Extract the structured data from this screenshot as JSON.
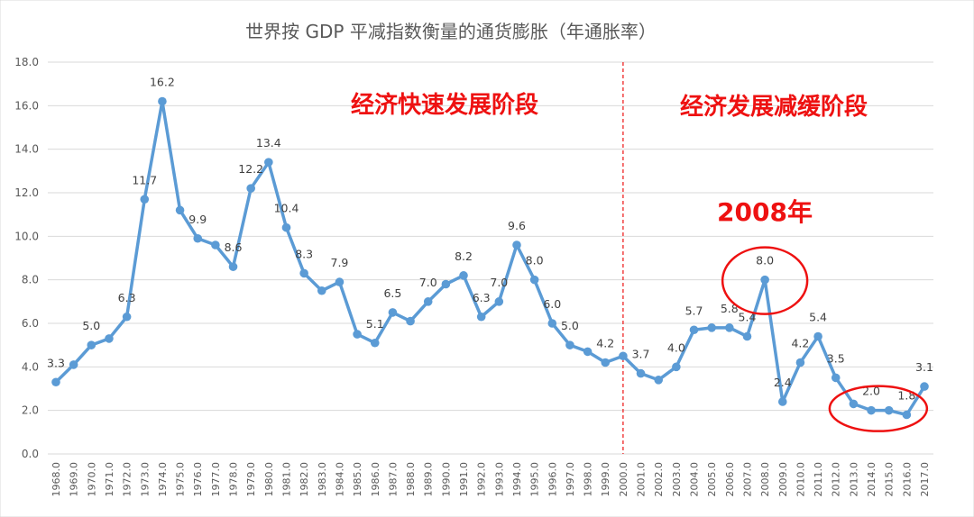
{
  "chart_data": {
    "type": "line",
    "title": "世界按 GDP 平减指数衡量的通货膨胀（年通胀率）",
    "x": [
      "1968.0",
      "1969.0",
      "1970.0",
      "1971.0",
      "1972.0",
      "1973.0",
      "1974.0",
      "1975.0",
      "1976.0",
      "1977.0",
      "1978.0",
      "1979.0",
      "1980.0",
      "1981.0",
      "1982.0",
      "1983.0",
      "1984.0",
      "1985.0",
      "1986.0",
      "1987.0",
      "1988.0",
      "1989.0",
      "1990.0",
      "1991.0",
      "1992.0",
      "1993.0",
      "1994.0",
      "1995.0",
      "1996.0",
      "1997.0",
      "1998.0",
      "1999.0",
      "2000.0",
      "2001.0",
      "2002.0",
      "2003.0",
      "2004.0",
      "2005.0",
      "2006.0",
      "2007.0",
      "2008.0",
      "2009.0",
      "2010.0",
      "2011.0",
      "2012.0",
      "2013.0",
      "2014.0",
      "2015.0",
      "2016.0",
      "2017.0"
    ],
    "values": [
      3.3,
      4.1,
      5.0,
      5.3,
      6.3,
      11.7,
      16.2,
      11.2,
      9.9,
      9.6,
      8.6,
      12.2,
      13.4,
      10.4,
      8.3,
      7.5,
      7.9,
      5.5,
      5.1,
      6.5,
      6.1,
      7.0,
      7.8,
      8.2,
      6.3,
      7.0,
      9.6,
      8.0,
      6.0,
      5.0,
      4.7,
      4.2,
      4.5,
      3.7,
      3.4,
      4.0,
      5.7,
      5.8,
      5.8,
      5.4,
      8.0,
      2.4,
      4.2,
      5.4,
      3.5,
      2.3,
      2.0,
      2.0,
      1.8,
      3.1
    ],
    "data_labels": [
      {
        "x": "1968.0",
        "text": "3.3"
      },
      {
        "x": "1970.0",
        "text": "5.0"
      },
      {
        "x": "1972.0",
        "text": "6.3"
      },
      {
        "x": "1973.0",
        "text": "11.7"
      },
      {
        "x": "1974.0",
        "text": "16.2"
      },
      {
        "x": "1976.0",
        "text": "9.9"
      },
      {
        "x": "1978.0",
        "text": "8.6"
      },
      {
        "x": "1979.0",
        "text": "12.2"
      },
      {
        "x": "1980.0",
        "text": "13.4"
      },
      {
        "x": "1981.0",
        "text": "10.4"
      },
      {
        "x": "1982.0",
        "text": "8.3"
      },
      {
        "x": "1984.0",
        "text": "7.9"
      },
      {
        "x": "1986.0",
        "text": "5.1"
      },
      {
        "x": "1987.0",
        "text": "6.5"
      },
      {
        "x": "1989.0",
        "text": "7.0"
      },
      {
        "x": "1991.0",
        "text": "8.2"
      },
      {
        "x": "1992.0",
        "text": "6.3"
      },
      {
        "x": "1993.0",
        "text": "7.0"
      },
      {
        "x": "1994.0",
        "text": "9.6"
      },
      {
        "x": "1995.0",
        "text": "8.0"
      },
      {
        "x": "1996.0",
        "text": "6.0"
      },
      {
        "x": "1997.0",
        "text": "5.0"
      },
      {
        "x": "1999.0",
        "text": "4.2"
      },
      {
        "x": "2001.0",
        "text": "3.7"
      },
      {
        "x": "2003.0",
        "text": "4.0"
      },
      {
        "x": "2004.0",
        "text": "5.7"
      },
      {
        "x": "2006.0",
        "text": "5.8"
      },
      {
        "x": "2007.0",
        "text": "5.4"
      },
      {
        "x": "2008.0",
        "text": "8.0"
      },
      {
        "x": "2009.0",
        "text": "2.4"
      },
      {
        "x": "2010.0",
        "text": "4.2"
      },
      {
        "x": "2011.0",
        "text": "5.4"
      },
      {
        "x": "2012.0",
        "text": "3.5"
      },
      {
        "x": "2014.0",
        "text": "2.0"
      },
      {
        "x": "2016.0",
        "text": "1.8"
      },
      {
        "x": "2017.0",
        "text": "3.1"
      }
    ],
    "y_ticks": [
      "0.0",
      "2.0",
      "4.0",
      "6.0",
      "8.0",
      "10.0",
      "12.0",
      "14.0",
      "16.0",
      "18.0"
    ],
    "ylim": [
      0,
      18
    ],
    "grid": true,
    "legend": "none",
    "divider_x": "2000.0",
    "annotations": {
      "phase_left": "经济快速发展阶段",
      "phase_right": "经济发展减缓阶段",
      "note_2008": "2008年"
    },
    "highlight_years": [
      "2008.0",
      "2013.0",
      "2014.0",
      "2015.0",
      "2016.0"
    ]
  },
  "colors": {
    "line": "#5b9bd5",
    "grid": "#d9d9d9",
    "accent": "#ee1111",
    "text": "#595959"
  }
}
